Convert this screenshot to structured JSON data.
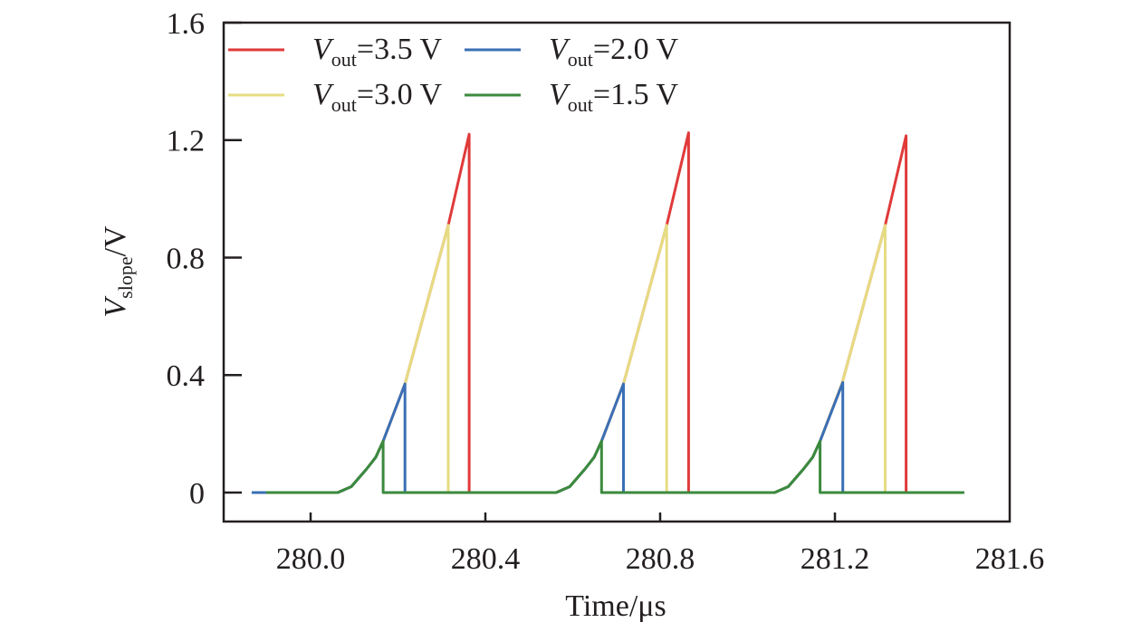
{
  "chart_data": {
    "type": "line",
    "title": "",
    "xlabel": "Time/μs",
    "ylabel": {
      "main": "V",
      "sub": "slope",
      "suffix": "/V"
    },
    "xlim": [
      279.8,
      281.6
    ],
    "ylim": [
      -0.1,
      1.6
    ],
    "xticks": [
      280.0,
      280.4,
      280.8,
      281.2,
      281.6
    ],
    "xtick_labels": [
      "280.0",
      "280.4",
      "280.8",
      "281.2",
      "281.6"
    ],
    "yticks": [
      0,
      0.4,
      0.8,
      1.2,
      1.6
    ],
    "ytick_labels": [
      "0",
      "0.4",
      "0.8",
      "1.2",
      "1.6"
    ],
    "grid": false,
    "legend_placement": "top-left",
    "legend_columns": 2,
    "period_us": 0.5,
    "series": [
      {
        "name": "Vout=3.5 V",
        "label_main": "V",
        "label_sub": "out",
        "label_value": "=3.5 V",
        "color": "#e03a3a",
        "x": [
          279.9,
          280.062,
          280.093,
          280.128,
          280.149,
          280.166,
          280.216,
          280.315,
          280.363,
          280.363,
          280.562,
          280.593,
          280.628,
          280.649,
          280.666,
          280.716,
          280.815,
          280.865,
          280.865,
          281.062,
          281.093,
          281.128,
          281.149,
          281.166,
          281.216,
          281.315,
          281.363,
          281.363,
          281.496
        ],
        "y": [
          0,
          0,
          0.02,
          0.08,
          0.12,
          0.175,
          0.37,
          0.91,
          1.22,
          0,
          0,
          0.02,
          0.08,
          0.12,
          0.175,
          0.37,
          0.91,
          1.225,
          0,
          0,
          0.02,
          0.08,
          0.12,
          0.175,
          0.37,
          0.91,
          1.215,
          0,
          0
        ]
      },
      {
        "name": "Vout=3.0 V",
        "label_main": "V",
        "label_sub": "out",
        "label_value": "=3.0 V",
        "color": "#e6dc82",
        "x": [
          279.9,
          280.062,
          280.093,
          280.128,
          280.149,
          280.166,
          280.216,
          280.315,
          280.315,
          280.562,
          280.593,
          280.628,
          280.649,
          280.666,
          280.716,
          280.815,
          280.815,
          281.062,
          281.093,
          281.128,
          281.149,
          281.166,
          281.216,
          281.315,
          281.315,
          281.496
        ],
        "y": [
          0,
          0,
          0.02,
          0.08,
          0.12,
          0.175,
          0.37,
          0.91,
          0,
          0,
          0.02,
          0.08,
          0.12,
          0.175,
          0.37,
          0.91,
          0,
          0,
          0.02,
          0.08,
          0.12,
          0.175,
          0.37,
          0.91,
          0,
          0
        ]
      },
      {
        "name": "Vout=2.0 V",
        "label_main": "V",
        "label_sub": "out",
        "label_value": "=2.0 V",
        "color": "#3a6fb5",
        "x": [
          279.865,
          280.062,
          280.093,
          280.128,
          280.149,
          280.166,
          280.216,
          280.216,
          280.562,
          280.593,
          280.628,
          280.649,
          280.666,
          280.716,
          280.716,
          281.062,
          281.093,
          281.128,
          281.149,
          281.166,
          281.218,
          281.218,
          281.496
        ],
        "y": [
          0,
          0,
          0.02,
          0.08,
          0.12,
          0.175,
          0.37,
          0,
          0,
          0.02,
          0.08,
          0.12,
          0.175,
          0.37,
          0,
          0,
          0.02,
          0.08,
          0.12,
          0.175,
          0.375,
          0,
          0
        ]
      },
      {
        "name": "Vout=1.5 V",
        "label_main": "V",
        "label_sub": "out",
        "label_value": "=1.5 V",
        "color": "#3b8a3e",
        "x": [
          279.898,
          280.062,
          280.093,
          280.128,
          280.149,
          280.166,
          280.166,
          280.562,
          280.593,
          280.628,
          280.649,
          280.666,
          280.666,
          281.062,
          281.093,
          281.128,
          281.149,
          281.166,
          281.166,
          281.496
        ],
        "y": [
          0,
          0,
          0.02,
          0.08,
          0.12,
          0.175,
          0,
          0,
          0.02,
          0.08,
          0.12,
          0.175,
          0,
          0,
          0.02,
          0.08,
          0.12,
          0.175,
          0,
          0
        ]
      }
    ]
  }
}
